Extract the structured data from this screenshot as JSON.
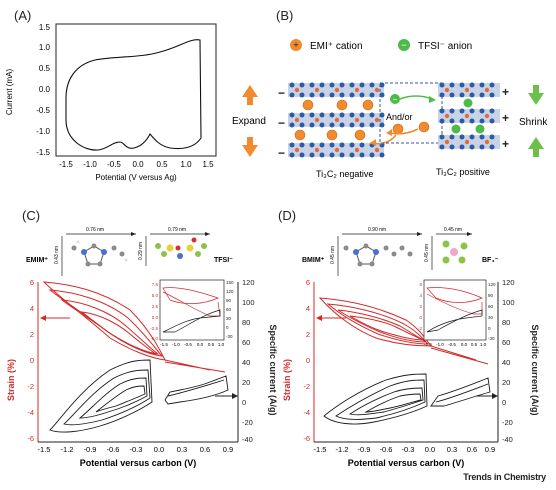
{
  "panelA": {
    "label": "(A)",
    "ylabel": "Current (mA)",
    "xlabel": "Potential (V versus Ag)",
    "yticks": [
      "1.5",
      "1.0",
      "0.5",
      "0.0",
      "-0.5",
      "-1.0",
      "-1.5"
    ],
    "xticks": [
      "-1.5",
      "-1.0",
      "-0.5",
      "0.0",
      "0.5",
      "1.0",
      "1.5"
    ]
  },
  "panelB": {
    "label": "(B)",
    "legend_cation": "EMI⁺ cation",
    "legend_anion": "TFSI⁻ anion",
    "expand": "Expand",
    "shrink": "Shrink",
    "andor": "And/or",
    "negative": "Ti₃C₂ negative",
    "positive": "Ti₃C₂ positive",
    "colors": {
      "cation": "#f28a2e",
      "anion": "#4dbb4a",
      "arrow_orange": "#f28a2e",
      "arrow_green": "#6cbf4a"
    }
  },
  "panelC": {
    "label": "(C)",
    "cation": "EMIM⁺",
    "anion": "TFSI⁻",
    "dim1": "0.76 nm",
    "dim2": "0.43 nm",
    "dim3": "0.79 nm",
    "dim4": "0.29 nm",
    "ylabel_left": "Strain (%)",
    "ylabel_right": "Specific current (A/g)",
    "xlabel": "Potential versus carbon (V)",
    "yticks_left": [
      "6",
      "4",
      "2",
      "0",
      "-2",
      "-4",
      "-6"
    ],
    "yticks_right": [
      "120",
      "100",
      "80",
      "60",
      "40",
      "20",
      "0",
      "-20",
      "-40"
    ],
    "xticks": [
      "-1.5",
      "-1.2",
      "-0.9",
      "-0.6",
      "-0.3",
      "0.0",
      "0.3",
      "0.6",
      "0.9"
    ],
    "inset_yleft": [
      "7.5",
      "5.0",
      "2.5",
      "0.0",
      "-2.5",
      "-5.0"
    ],
    "inset_yright": [
      "150",
      "120",
      "90",
      "60",
      "30",
      "0",
      "-30"
    ],
    "inset_x": [
      "-1.5",
      "-1.0",
      "-0.5",
      "0.0",
      "0.5",
      "1.0"
    ]
  },
  "panelD": {
    "label": "(D)",
    "cation": "BMIM⁺",
    "anion": "BF₄⁻",
    "dim1": "0.90 nm",
    "dim2": "0.45 nm",
    "dim3": "0.45 nm",
    "dim4": "0.45 nm",
    "ylabel_left": "Strain (%)",
    "ylabel_right": "Specific current (A/g)",
    "xlabel": "Potential versus carbon (V)",
    "yticks_left": [
      "6",
      "4",
      "2",
      "0",
      "-2",
      "-4",
      "-6"
    ],
    "yticks_right": [
      "120",
      "100",
      "80",
      "60",
      "40",
      "20",
      "0",
      "-20",
      "-40"
    ],
    "xticks": [
      "-1.5",
      "-1.2",
      "-0.9",
      "-0.6",
      "-0.3",
      "0.0",
      "0.3",
      "0.6",
      "0.9"
    ],
    "inset_yleft": [
      "6",
      "4",
      "2",
      "0",
      "-2",
      "-4"
    ],
    "inset_yright": [
      "120",
      "90",
      "60",
      "30",
      "0",
      "-30"
    ],
    "inset_x": [
      "-1.5",
      "-1.0",
      "-0.5",
      "0.0",
      "0.5",
      "1.0"
    ]
  },
  "footer": "Trends in Chemistry",
  "colors": {
    "strain": "#d42a2a",
    "current": "#1a1a1a"
  }
}
